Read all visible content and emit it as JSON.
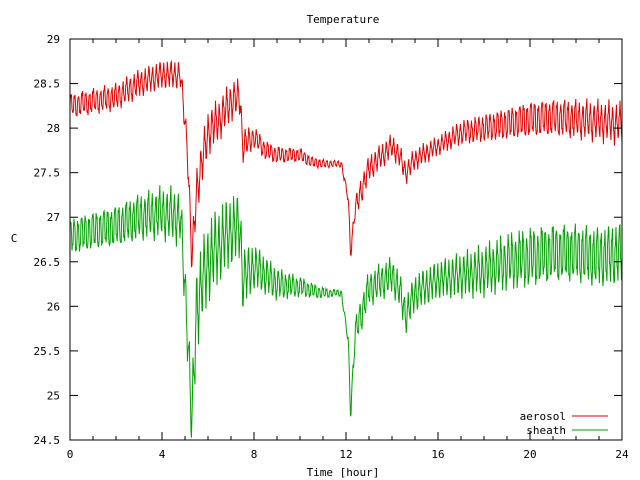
{
  "chart_data": {
    "type": "line",
    "title": "Temperature",
    "xlabel": "Time [hour]",
    "ylabel": "C",
    "xlim": [
      0,
      24
    ],
    "ylim": [
      24.5,
      29
    ],
    "xticks": [
      "0",
      "4",
      "8",
      "12",
      "16",
      "20",
      "24"
    ],
    "yticks": [
      "24.5",
      "25",
      "25.5",
      "26",
      "26.5",
      "27",
      "27.5",
      "28",
      "28.5",
      "29"
    ],
    "grid": false,
    "legend_position": "bottom-right",
    "series": [
      {
        "name": "aerosol",
        "color": "#e00000",
        "points": [
          [
            0,
            28.25
          ],
          [
            1,
            28.3
          ],
          [
            2,
            28.35
          ],
          [
            3,
            28.5
          ],
          [
            4,
            28.6
          ],
          [
            4.8,
            28.6
          ],
          [
            5.1,
            27.8
          ],
          [
            5.3,
            26.5
          ],
          [
            5.5,
            27.3
          ],
          [
            6,
            27.95
          ],
          [
            6.5,
            28.1
          ],
          [
            7,
            28.3
          ],
          [
            7.4,
            28.35
          ],
          [
            7.5,
            27.8
          ],
          [
            8,
            27.9
          ],
          [
            8.5,
            27.75
          ],
          [
            9,
            27.7
          ],
          [
            10,
            27.7
          ],
          [
            10.5,
            27.62
          ],
          [
            11,
            27.6
          ],
          [
            11.8,
            27.6
          ],
          [
            12.1,
            27.2
          ],
          [
            12.2,
            26.6
          ],
          [
            12.4,
            27.1
          ],
          [
            13,
            27.55
          ],
          [
            14,
            27.8
          ],
          [
            14.3,
            27.7
          ],
          [
            14.6,
            27.5
          ],
          [
            15,
            27.65
          ],
          [
            16,
            27.8
          ],
          [
            17,
            27.95
          ],
          [
            18,
            28
          ],
          [
            19,
            28.05
          ],
          [
            20,
            28.1
          ],
          [
            21,
            28.12
          ],
          [
            22,
            28.1
          ],
          [
            23,
            28.08
          ],
          [
            24,
            28.05
          ]
        ],
        "amplitude": [
          [
            0,
            0.15
          ],
          [
            5,
            0.15
          ],
          [
            5.5,
            0.25
          ],
          [
            7.4,
            0.2
          ],
          [
            8,
            0.12
          ],
          [
            10,
            0.08
          ],
          [
            11.5,
            0.04
          ],
          [
            12,
            0.04
          ],
          [
            12.6,
            0.15
          ],
          [
            14.5,
            0.12
          ],
          [
            16,
            0.1
          ],
          [
            20,
            0.22
          ],
          [
            24,
            0.22
          ]
        ]
      },
      {
        "name": "sheath",
        "color": "#00a000",
        "points": [
          [
            0,
            26.78
          ],
          [
            1,
            26.85
          ],
          [
            2,
            26.9
          ],
          [
            3,
            27.0
          ],
          [
            4,
            27.05
          ],
          [
            4.8,
            27.0
          ],
          [
            5.1,
            25.8
          ],
          [
            5.3,
            24.65
          ],
          [
            5.5,
            26.0
          ],
          [
            6,
            26.5
          ],
          [
            6.5,
            26.7
          ],
          [
            7,
            26.85
          ],
          [
            7.4,
            26.9
          ],
          [
            7.5,
            26.3
          ],
          [
            8,
            26.45
          ],
          [
            8.5,
            26.35
          ],
          [
            9,
            26.25
          ],
          [
            10,
            26.22
          ],
          [
            10.5,
            26.18
          ],
          [
            11,
            26.15
          ],
          [
            11.8,
            26.15
          ],
          [
            12.1,
            25.6
          ],
          [
            12.2,
            24.8
          ],
          [
            12.4,
            25.7
          ],
          [
            13,
            26.2
          ],
          [
            14,
            26.35
          ],
          [
            14.3,
            26.2
          ],
          [
            14.6,
            25.9
          ],
          [
            15,
            26.15
          ],
          [
            16,
            26.3
          ],
          [
            17,
            26.35
          ],
          [
            18,
            26.4
          ],
          [
            19,
            26.5
          ],
          [
            20,
            26.55
          ],
          [
            21,
            26.6
          ],
          [
            22,
            26.6
          ],
          [
            23,
            26.55
          ],
          [
            24,
            26.6
          ]
        ],
        "amplitude": [
          [
            0,
            0.22
          ],
          [
            5,
            0.3
          ],
          [
            5.5,
            0.45
          ],
          [
            7.4,
            0.35
          ],
          [
            8,
            0.25
          ],
          [
            10,
            0.12
          ],
          [
            11.5,
            0.04
          ],
          [
            12,
            0.04
          ],
          [
            12.6,
            0.2
          ],
          [
            14.5,
            0.2
          ],
          [
            16,
            0.2
          ],
          [
            20,
            0.35
          ],
          [
            24,
            0.35
          ]
        ]
      }
    ]
  }
}
